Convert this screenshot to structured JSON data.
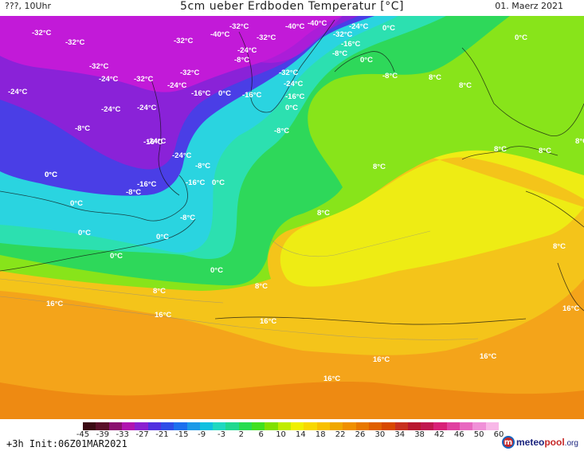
{
  "header": {
    "left": "???, 10Uhr",
    "title": "5cm ueber Erdboden Temperatur [°C]",
    "date": "01. Maerz 2021"
  },
  "footer": {
    "step": "+3h",
    "init": "Init:06Z01MAR2021",
    "logo": {
      "a": "meteo",
      "b": "pool",
      "c": ".org"
    }
  },
  "scale": {
    "labels": [
      "-45",
      "-39",
      "-33",
      "-27",
      "-21",
      "-15",
      "-9",
      "-3",
      "2",
      "6",
      "10",
      "14",
      "18",
      "22",
      "26",
      "30",
      "34",
      "38",
      "42",
      "46",
      "50",
      "60"
    ],
    "colors": [
      "#3b0a14",
      "#5a0f2a",
      "#8a1070",
      "#b014b0",
      "#8a20d0",
      "#5030e0",
      "#2d4de8",
      "#1c70ee",
      "#1c9ae8",
      "#10c0e0",
      "#20d8c0",
      "#20d890",
      "#28dc50",
      "#40e020",
      "#80e000",
      "#c0ec00",
      "#f0f000",
      "#f8d800",
      "#f8c000",
      "#f0a800",
      "#f09000",
      "#e87800",
      "#e06000",
      "#d84800",
      "#c83020",
      "#b81830",
      "#c01850",
      "#d82078",
      "#e040a0",
      "#e868c0",
      "#f090d8",
      "#f8b8e8"
    ]
  },
  "palette": {
    "magenta": "#c21ad8",
    "violet": "#8a22d8",
    "blue": "#4a3ee6",
    "cyan": "#2ad4e0",
    "aqua": "#2ce0b0",
    "green": "#2ed85a",
    "lime": "#88e41a",
    "yellow": "#eeec14",
    "gold": "#f4c41a",
    "orange": "#f4a41a",
    "deeporange": "#ee8a12"
  },
  "labels": [
    "-32°C",
    "-32°C",
    "-32°C",
    "-32°C",
    "-40°C",
    "-32°C",
    "-40°C",
    "-32°C",
    "-40°C",
    "-24°C",
    "-32°C",
    "-24°C",
    "-16°C",
    "0°C",
    "0°C",
    "-24°C",
    "-32°C",
    "-24°C",
    "-32°C",
    "-24°C",
    "-8°C",
    "-8°C",
    "0°C",
    "-8°C",
    "-32°C",
    "-24°C",
    "-24°C",
    "-16°C",
    "0°C",
    "-16°C",
    "-24°C",
    "-16°C",
    "0°C",
    "8°C",
    "8°C",
    "-16°C",
    "-8°C",
    "-8°C",
    "-24°C",
    "-24°C",
    "8°C",
    "8°C",
    "-8°C",
    "-16°C",
    "-16°C",
    "0°C",
    "8°C",
    "0°C",
    "-8°C",
    "8°C",
    "0°C",
    "0°C",
    "0°C",
    "-8°C",
    "0°C",
    "0°C",
    "8°C",
    "0°C",
    "8°C",
    "8°C",
    "16°C",
    "16°C",
    "8°C",
    "16°C",
    "16°C",
    "16°C",
    "16°C",
    "16°C"
  ]
}
